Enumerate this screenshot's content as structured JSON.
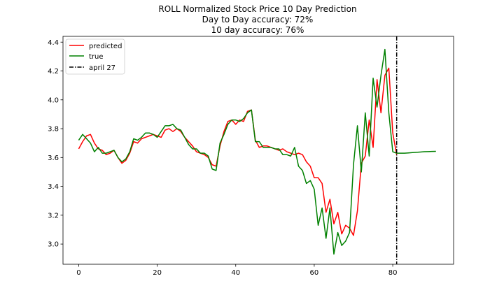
{
  "chart_data": {
    "type": "line",
    "title": "ROLL Normalized Stock Price 10 Day Prediction",
    "subtitle_lines": [
      "Day to Day accuracy: 72%",
      "10 day accuracy: 76%"
    ],
    "xlabel": "",
    "ylabel": "",
    "xlim": [
      -4,
      95.5
    ],
    "ylim": [
      2.86,
      4.44
    ],
    "x_ticks": [
      0,
      20,
      40,
      60,
      80
    ],
    "y_ticks": [
      3.0,
      3.2,
      3.4,
      3.6,
      3.8,
      4.0,
      4.2,
      4.4
    ],
    "y_tick_labels": [
      "3.0",
      "3.2",
      "3.4",
      "3.6",
      "3.8",
      "4.0",
      "4.2",
      "4.4"
    ],
    "grid": false,
    "legend_position": "top-left",
    "series": [
      {
        "name": "predicted",
        "color": "#ff0000",
        "style": "solid",
        "x": [
          0,
          1,
          2,
          3,
          4,
          5,
          6,
          7,
          8,
          9,
          10,
          11,
          12,
          13,
          14,
          15,
          16,
          17,
          18,
          19,
          20,
          21,
          22,
          23,
          24,
          25,
          26,
          27,
          28,
          29,
          30,
          31,
          32,
          33,
          34,
          35,
          36,
          37,
          38,
          39,
          40,
          41,
          42,
          43,
          44,
          45,
          46,
          47,
          48,
          49,
          50,
          51,
          52,
          53,
          54,
          55,
          56,
          57,
          58,
          59,
          60,
          61,
          62,
          63,
          64,
          65,
          66,
          67,
          68,
          69,
          70,
          71,
          72,
          73,
          74,
          75,
          76,
          77,
          78,
          79,
          80,
          81
        ],
        "values": [
          3.66,
          3.71,
          3.75,
          3.76,
          3.7,
          3.66,
          3.65,
          3.62,
          3.63,
          3.65,
          3.6,
          3.56,
          3.58,
          3.63,
          3.71,
          3.7,
          3.73,
          3.74,
          3.75,
          3.76,
          3.75,
          3.74,
          3.79,
          3.8,
          3.78,
          3.8,
          3.78,
          3.74,
          3.71,
          3.68,
          3.64,
          3.63,
          3.62,
          3.6,
          3.55,
          3.54,
          3.68,
          3.78,
          3.85,
          3.86,
          3.83,
          3.86,
          3.85,
          3.92,
          3.93,
          3.72,
          3.67,
          3.68,
          3.68,
          3.67,
          3.66,
          3.65,
          3.66,
          3.64,
          3.63,
          3.62,
          3.63,
          3.62,
          3.57,
          3.54,
          3.46,
          3.46,
          3.42,
          3.22,
          3.31,
          3.14,
          3.22,
          3.07,
          3.13,
          3.11,
          3.06,
          3.23,
          3.56,
          3.61,
          3.86,
          3.67,
          4.14,
          3.91,
          4.17,
          4.22,
          3.77,
          3.62
        ]
      },
      {
        "name": "true",
        "color": "#008000",
        "style": "solid",
        "x": [
          0,
          1,
          2,
          3,
          4,
          5,
          6,
          7,
          8,
          9,
          10,
          11,
          12,
          13,
          14,
          15,
          16,
          17,
          18,
          19,
          20,
          21,
          22,
          23,
          24,
          25,
          26,
          27,
          28,
          29,
          30,
          31,
          32,
          33,
          34,
          35,
          36,
          37,
          38,
          39,
          40,
          41,
          42,
          43,
          44,
          45,
          46,
          47,
          48,
          49,
          50,
          51,
          52,
          53,
          54,
          55,
          56,
          57,
          58,
          59,
          60,
          61,
          62,
          63,
          64,
          65,
          66,
          67,
          68,
          69,
          70,
          71,
          72,
          73,
          74,
          75,
          76,
          77,
          78,
          79,
          80,
          81,
          82,
          83,
          84,
          85,
          86,
          87,
          88,
          89,
          90,
          91
        ],
        "values": [
          3.72,
          3.76,
          3.73,
          3.7,
          3.64,
          3.67,
          3.63,
          3.63,
          3.64,
          3.65,
          3.6,
          3.57,
          3.59,
          3.64,
          3.73,
          3.72,
          3.74,
          3.77,
          3.77,
          3.76,
          3.74,
          3.78,
          3.82,
          3.82,
          3.83,
          3.8,
          3.79,
          3.74,
          3.69,
          3.66,
          3.66,
          3.63,
          3.63,
          3.61,
          3.52,
          3.51,
          3.7,
          3.76,
          3.83,
          3.86,
          3.86,
          3.85,
          3.87,
          3.91,
          3.93,
          3.71,
          3.71,
          3.67,
          3.67,
          3.67,
          3.66,
          3.66,
          3.62,
          3.62,
          3.61,
          3.67,
          3.54,
          3.51,
          3.42,
          3.44,
          3.38,
          3.13,
          3.25,
          3.04,
          3.25,
          2.93,
          3.08,
          2.99,
          3.02,
          3.08,
          3.55,
          3.82,
          3.5,
          3.91,
          3.61,
          4.15,
          3.95,
          4.17,
          4.35,
          3.91,
          3.64,
          3.63,
          3.63,
          3.63,
          3.632,
          3.634,
          3.636,
          3.638,
          3.64,
          3.641,
          3.642,
          3.643
        ]
      }
    ],
    "annotations": [
      {
        "type": "vline",
        "label": "april 27",
        "x": 81,
        "color": "#000000",
        "style": "dashdot"
      }
    ]
  }
}
